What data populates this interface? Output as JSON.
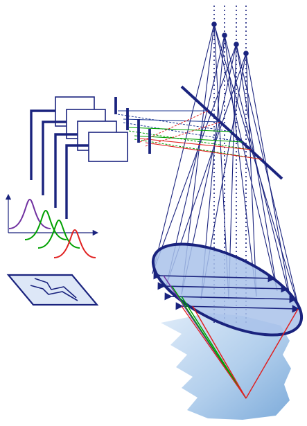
{
  "diagram": {
    "title": "",
    "labels": [],
    "channels": [
      {
        "id": "purple",
        "color": "#7030a0"
      },
      {
        "id": "green",
        "color": "#00a000"
      },
      {
        "id": "blue",
        "color": "#1f3a93"
      },
      {
        "id": "red",
        "color": "#e02020"
      }
    ],
    "colors": {
      "frame": "#1a237e",
      "ellipse_fill": "#a9c2ea",
      "ellipse_stroke": "#1a237e",
      "surface_light": "#e6f1fb",
      "surface_dark": "#8fb8e0",
      "map_fill": "#dde7f7",
      "box_fill": "#ffffff",
      "box_stroke": "#1a237e",
      "axis": "#1a237e"
    },
    "components": {
      "point_sources": 4,
      "detector_boxes": 4,
      "spectra_curves": 4,
      "mirror": "diagonal-beam-splitter",
      "lens": "ellipse",
      "target": "wavy-surface",
      "map": "parallelogram"
    }
  }
}
